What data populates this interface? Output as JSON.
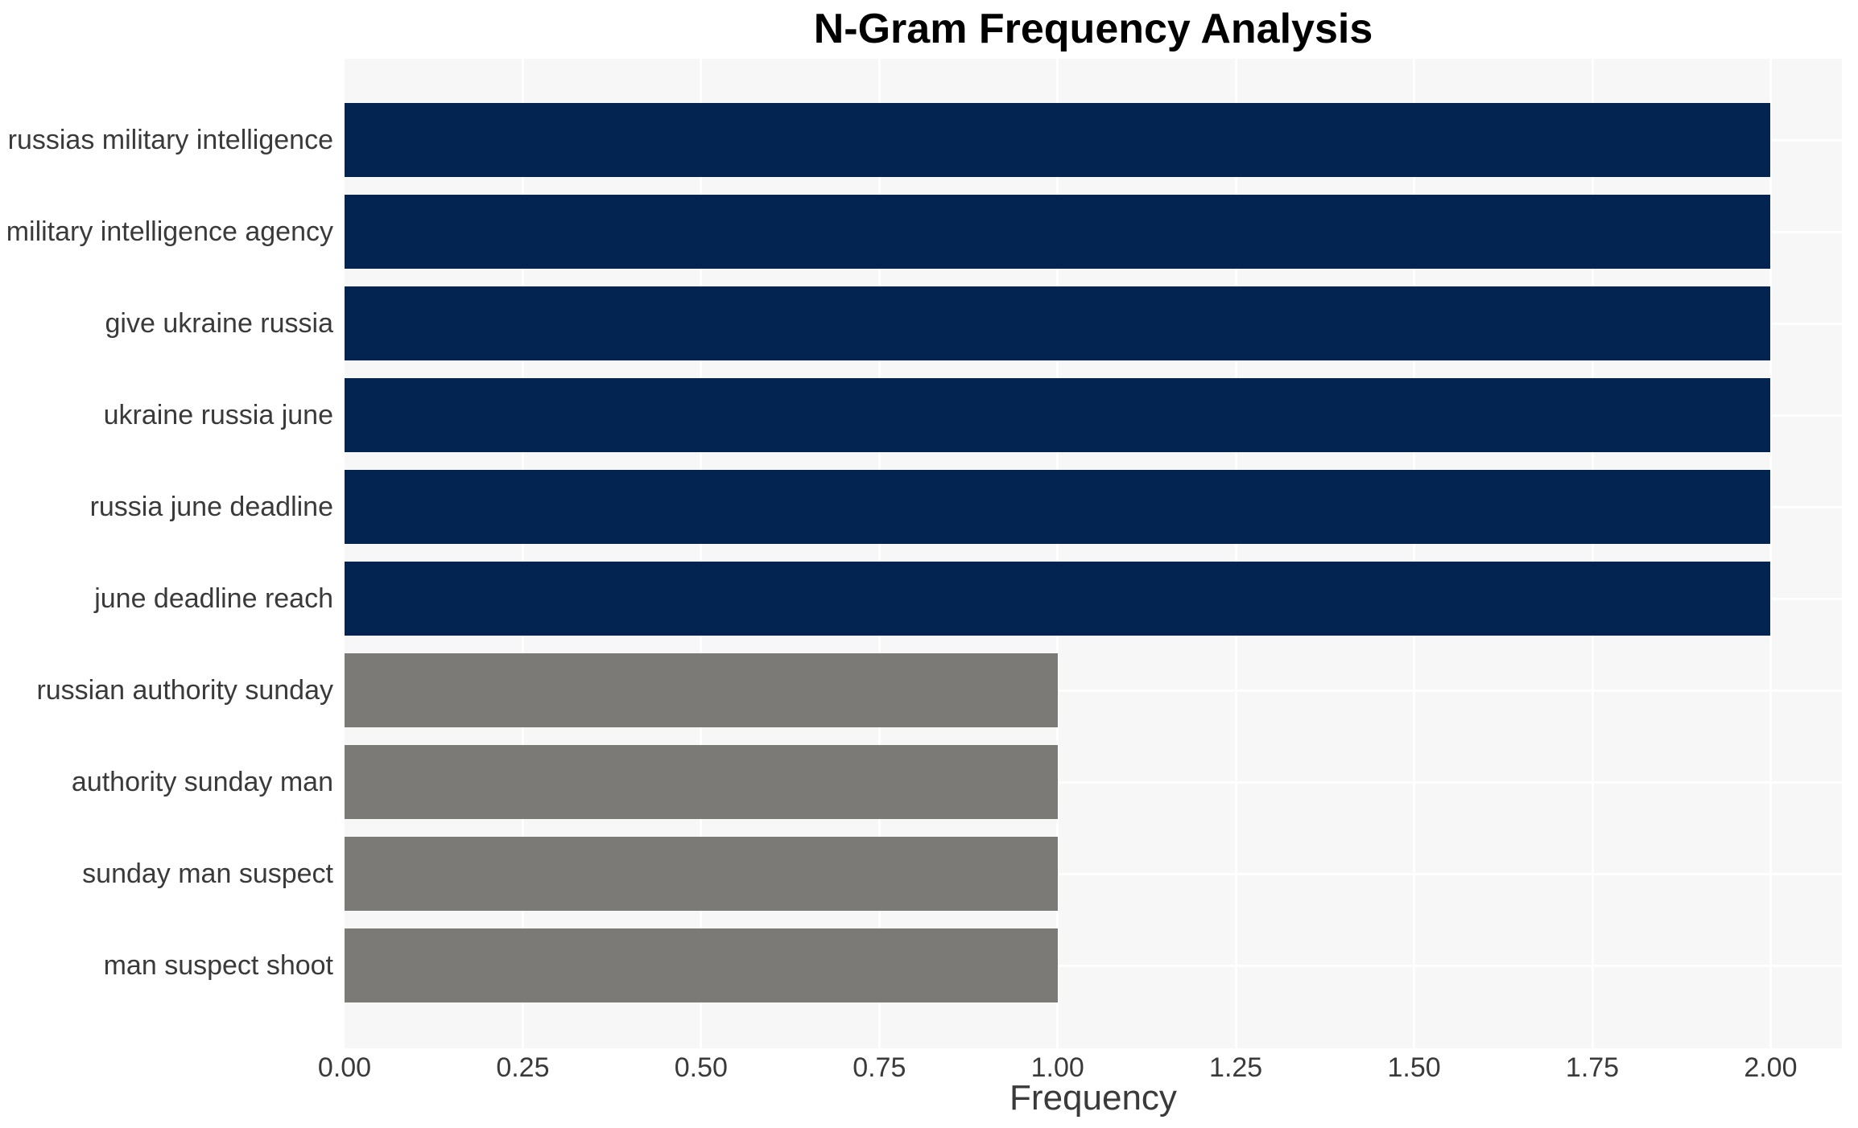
{
  "chart_data": {
    "type": "bar",
    "orientation": "horizontal",
    "title": "N-Gram Frequency Analysis",
    "xlabel": "Frequency",
    "ylabel": "",
    "categories": [
      "russias military intelligence",
      "military intelligence agency",
      "give ukraine russia",
      "ukraine russia june",
      "russia june deadline",
      "june deadline reach",
      "russian authority sunday",
      "authority sunday man",
      "sunday man suspect",
      "man suspect shoot"
    ],
    "values": [
      2,
      2,
      2,
      2,
      2,
      2,
      1,
      1,
      1,
      1
    ],
    "bar_colors": [
      "#032451",
      "#032451",
      "#032451",
      "#032451",
      "#032451",
      "#032451",
      "#7b7a76",
      "#7b7a76",
      "#7b7a76",
      "#7b7a76"
    ],
    "xticks": [
      {
        "value": 0.0,
        "label": "0.00"
      },
      {
        "value": 0.25,
        "label": "0.25"
      },
      {
        "value": 0.5,
        "label": "0.50"
      },
      {
        "value": 0.75,
        "label": "0.75"
      },
      {
        "value": 1.0,
        "label": "1.00"
      },
      {
        "value": 1.25,
        "label": "1.25"
      },
      {
        "value": 1.5,
        "label": "1.50"
      },
      {
        "value": 1.75,
        "label": "1.75"
      },
      {
        "value": 2.0,
        "label": "2.00"
      }
    ],
    "xlim": [
      0,
      2.1
    ],
    "grid": true,
    "legend_position": "none",
    "colors": {
      "plot_background": "#f7f7f7",
      "grid_line": "#ffffff",
      "tick_text": "#3a3a3a",
      "title_text": "#000000",
      "page_background": "#ffffff",
      "bar_high": "#032451",
      "bar_low": "#7b7a76"
    }
  }
}
